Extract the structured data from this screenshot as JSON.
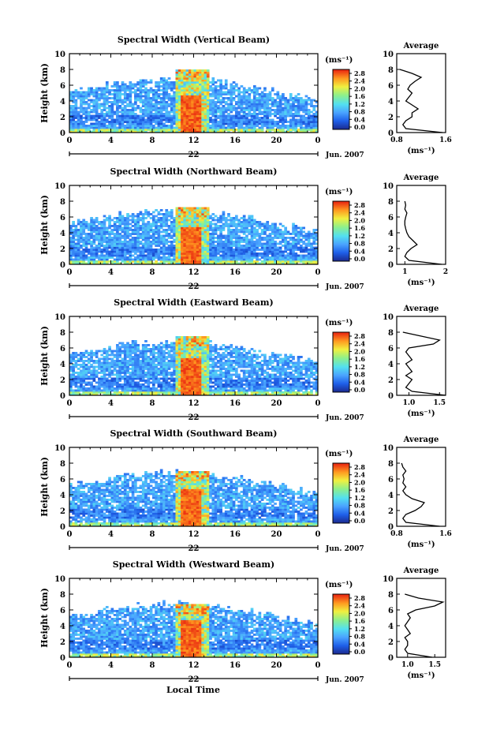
{
  "chart_data": {
    "type": "heatmap",
    "figure_xlabel": "Local Time",
    "date_label": "Jun. 2007",
    "day_label": "22",
    "unit_label": "(ms⁻¹)",
    "heatmap_xlim": [
      0,
      24
    ],
    "heatmap_xticks": [
      "0",
      "4",
      "8",
      "12",
      "16",
      "20",
      "0"
    ],
    "heatmap_ylim": [
      0,
      10
    ],
    "yticks": [
      "0",
      "2",
      "4",
      "6",
      "8",
      "10"
    ],
    "ylabel": "Height (km)",
    "colorbar_ticks": [
      "0.0",
      "0.4",
      "0.8",
      "1.2",
      "1.6",
      "2.0",
      "2.4",
      "2.8"
    ],
    "profile_title": "Average",
    "profile_xlabel": "(ms⁻¹)",
    "panels": [
      {
        "title": "Spectral Width (Vertical Beam)",
        "profile_xlim": [
          0.8,
          1.6
        ],
        "profile_xticks": [
          "0.8",
          "1.6"
        ],
        "profile_heights": [
          0,
          0.5,
          1,
          1.5,
          2,
          2.5,
          3,
          3.5,
          4,
          4.5,
          5,
          5.5,
          6,
          6.5,
          7,
          7.5,
          8
        ],
        "profile_values": [
          1.55,
          0.95,
          0.9,
          0.95,
          1.05,
          1.05,
          1.15,
          1.05,
          0.95,
          1.0,
          1.05,
          0.98,
          1.02,
          1.1,
          1.2,
          1.05,
          0.85
        ]
      },
      {
        "title": "Spectral Width (Northward Beam)",
        "profile_xlim": [
          0.8,
          2.0
        ],
        "profile_xticks": [
          "1",
          "2"
        ],
        "profile_heights": [
          0,
          0.5,
          1,
          1.5,
          2,
          2.5,
          3,
          3.5,
          4,
          4.5,
          5,
          5.5,
          6,
          6.5,
          7,
          7.5,
          8
        ],
        "profile_values": [
          1.9,
          1.1,
          1.0,
          1.05,
          1.15,
          1.3,
          1.2,
          1.1,
          1.05,
          1.02,
          1.0,
          1.0,
          1.02,
          1.05,
          1.0,
          1.02,
          1.0
        ]
      },
      {
        "title": "Spectral Width (Eastward Beam)",
        "profile_xlim": [
          0.8,
          1.6
        ],
        "profile_xticks": [
          "1.0",
          "1.5"
        ],
        "profile_heights": [
          0,
          0.5,
          1,
          1.5,
          2,
          2.5,
          3,
          3.5,
          4,
          4.5,
          5,
          5.5,
          6,
          6.5,
          7,
          7.5,
          8
        ],
        "profile_values": [
          1.6,
          1.05,
          0.95,
          1.0,
          1.05,
          0.95,
          1.05,
          1.0,
          0.95,
          1.05,
          1.0,
          0.95,
          1.0,
          1.4,
          1.5,
          1.2,
          0.9
        ]
      },
      {
        "title": "Spectral Width (Southward Beam)",
        "profile_xlim": [
          0.8,
          1.6
        ],
        "profile_xticks": [
          "0.8",
          "1.6"
        ],
        "profile_heights": [
          0,
          0.5,
          1,
          1.5,
          2,
          2.5,
          3,
          3.5,
          4,
          4.5,
          5,
          5.5,
          6,
          6.5,
          7,
          7.5,
          8
        ],
        "profile_values": [
          1.5,
          0.95,
          0.9,
          0.95,
          1.1,
          1.2,
          1.25,
          1.05,
          0.95,
          0.9,
          0.95,
          0.9,
          0.92,
          0.9,
          0.95,
          0.9,
          0.88
        ]
      },
      {
        "title": "Spectral Width (Westward Beam)",
        "profile_xlim": [
          0.8,
          1.7
        ],
        "profile_xticks": [
          "1.0",
          "1.5"
        ],
        "profile_heights": [
          0,
          0.5,
          1,
          1.5,
          2,
          2.5,
          3,
          3.5,
          4,
          4.5,
          5,
          5.5,
          6,
          6.5,
          7,
          7.5,
          8
        ],
        "profile_values": [
          1.45,
          1.0,
          0.95,
          1.0,
          1.0,
          0.95,
          1.05,
          1.0,
          0.95,
          1.0,
          1.05,
          1.0,
          1.15,
          1.5,
          1.65,
          1.2,
          0.95
        ]
      }
    ]
  }
}
